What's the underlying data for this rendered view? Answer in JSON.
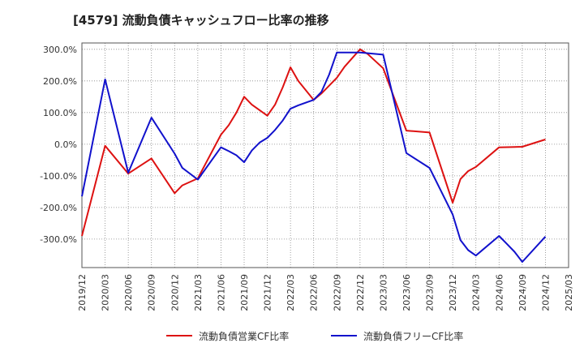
{
  "chart_data": {
    "type": "line",
    "title": "[4579]  流動負債キャッシュフロー比率の推移",
    "xlabel": "",
    "ylabel": "",
    "ylim": [
      -390,
      320
    ],
    "yticks": [
      300,
      200,
      100,
      0,
      -100,
      -200,
      -300
    ],
    "ytick_labels": [
      "300.0%",
      "200.0%",
      "100.0%",
      "0.0%",
      "-100.0%",
      "-200.0%",
      "-300.0%"
    ],
    "x_ticks": [
      "2019/12",
      "2020/03",
      "2020/06",
      "2020/09",
      "2020/12",
      "2021/03",
      "2021/06",
      "2021/09",
      "2021/12",
      "2022/03",
      "2022/06",
      "2022/09",
      "2022/12",
      "2023/03",
      "2023/06",
      "2023/09",
      "2023/12",
      "2024/03",
      "2024/06",
      "2024/09",
      "2024/12",
      "2025/03"
    ],
    "x_range": [
      "2019/12",
      "2025/03"
    ],
    "grid": true,
    "legend": "bottom",
    "series": [
      {
        "name": "流動負債営業CF比率",
        "color": "#dd1111",
        "points": [
          [
            "2019/12",
            -290
          ],
          [
            "2020/03",
            -5
          ],
          [
            "2020/06",
            -93
          ],
          [
            "2020/09",
            -45
          ],
          [
            "2020/12",
            -155
          ],
          [
            "2021/01",
            -130
          ],
          [
            "2021/03",
            -108
          ],
          [
            "2021/06",
            30
          ],
          [
            "2021/07",
            60
          ],
          [
            "2021/08",
            100
          ],
          [
            "2021/09",
            150
          ],
          [
            "2021/10",
            125
          ],
          [
            "2021/12",
            90
          ],
          [
            "2022/01",
            125
          ],
          [
            "2022/02",
            180
          ],
          [
            "2022/03",
            243
          ],
          [
            "2022/04",
            200
          ],
          [
            "2022/06",
            140
          ],
          [
            "2022/07",
            160
          ],
          [
            "2022/09",
            210
          ],
          [
            "2022/10",
            245
          ],
          [
            "2022/12",
            300
          ],
          [
            "2023/01",
            285
          ],
          [
            "2023/03",
            240
          ],
          [
            "2023/06",
            43
          ],
          [
            "2023/09",
            37
          ],
          [
            "2023/12",
            -185
          ],
          [
            "2024/01",
            -110
          ],
          [
            "2024/02",
            -85
          ],
          [
            "2024/03",
            -72
          ],
          [
            "2024/06",
            -10
          ],
          [
            "2024/09",
            -8
          ],
          [
            "2024/12",
            15
          ]
        ]
      },
      {
        "name": "流動負債フリーCF比率",
        "color": "#1111cc",
        "points": [
          [
            "2019/12",
            -165
          ],
          [
            "2020/03",
            205
          ],
          [
            "2020/06",
            -90
          ],
          [
            "2020/09",
            84
          ],
          [
            "2020/12",
            -30
          ],
          [
            "2021/01",
            -75
          ],
          [
            "2021/03",
            -112
          ],
          [
            "2021/06",
            -10
          ],
          [
            "2021/07",
            -22
          ],
          [
            "2021/08",
            -35
          ],
          [
            "2021/09",
            -57
          ],
          [
            "2021/10",
            -20
          ],
          [
            "2021/11",
            5
          ],
          [
            "2021/12",
            20
          ],
          [
            "2022/01",
            45
          ],
          [
            "2022/02",
            75
          ],
          [
            "2022/03",
            112
          ],
          [
            "2022/04",
            123
          ],
          [
            "2022/06",
            140
          ],
          [
            "2022/07",
            165
          ],
          [
            "2022/08",
            220
          ],
          [
            "2022/09",
            290
          ],
          [
            "2022/12",
            290
          ],
          [
            "2023/03",
            283
          ],
          [
            "2023/06",
            -28
          ],
          [
            "2023/09",
            -75
          ],
          [
            "2023/12",
            -222
          ],
          [
            "2024/01",
            -303
          ],
          [
            "2024/02",
            -335
          ],
          [
            "2024/03",
            -352
          ],
          [
            "2024/06",
            -290
          ],
          [
            "2024/07",
            -315
          ],
          [
            "2024/08",
            -340
          ],
          [
            "2024/09",
            -372
          ],
          [
            "2024/12",
            -292
          ]
        ]
      }
    ]
  }
}
